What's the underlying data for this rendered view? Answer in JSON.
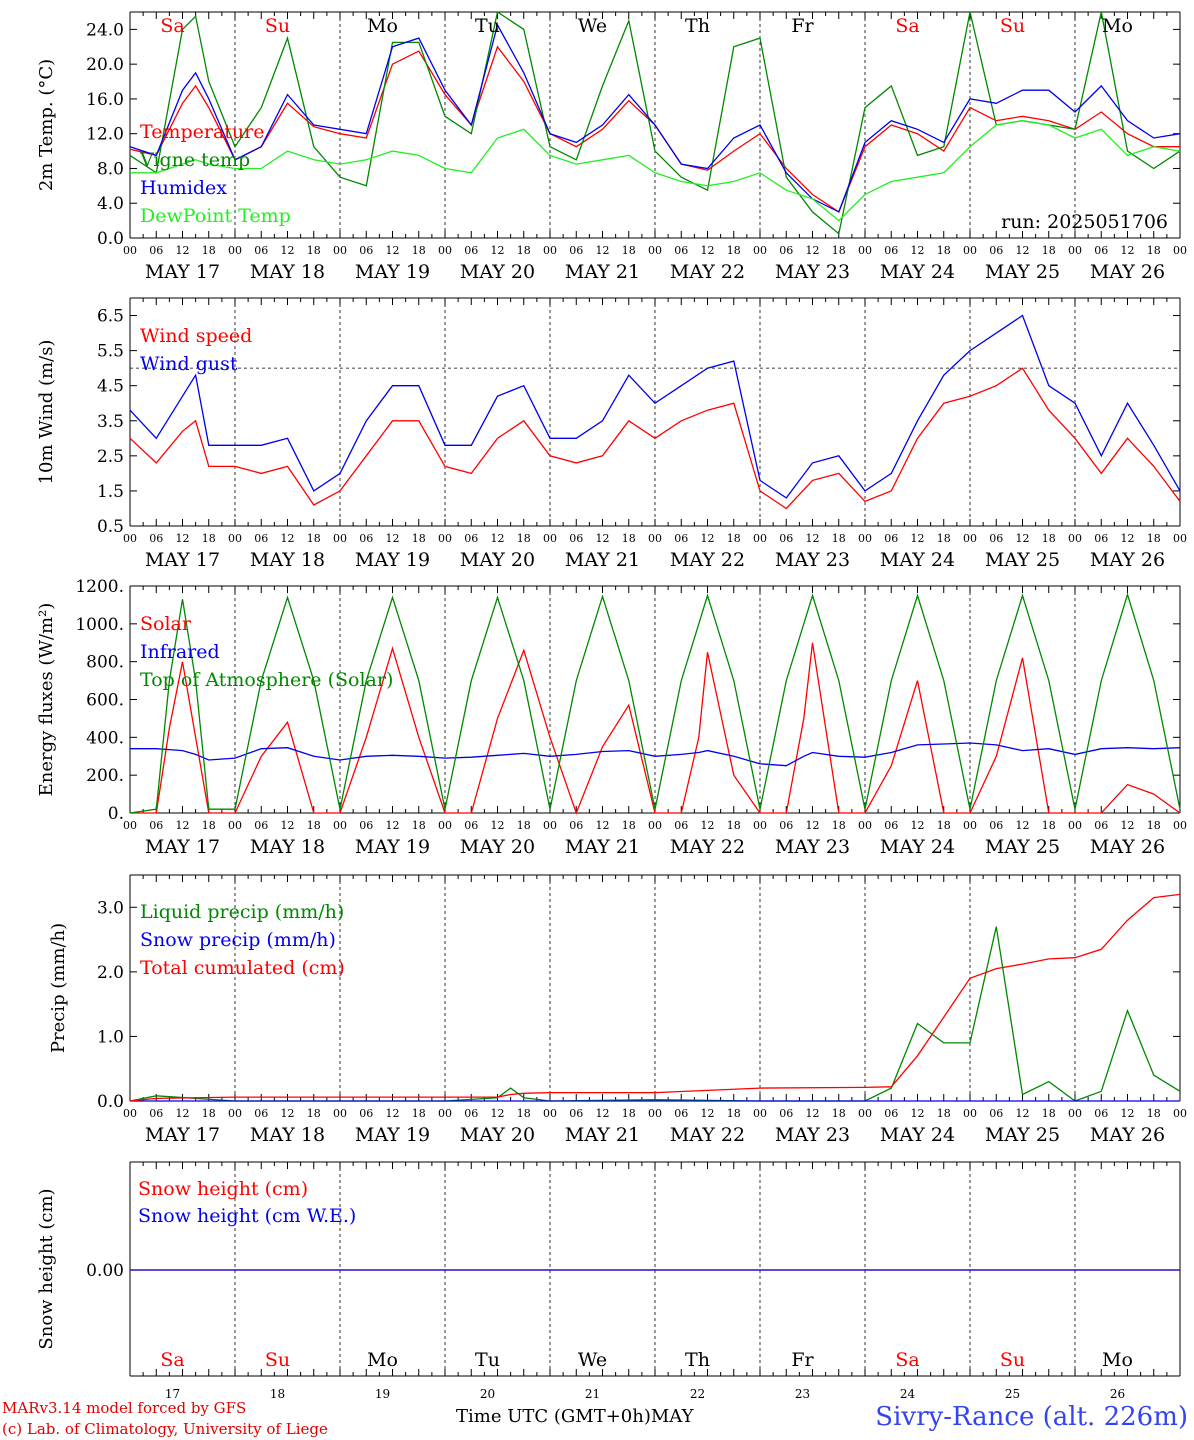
{
  "footer": {
    "credit_line1": "MARv3.14 model forced by GFS",
    "credit_line2": "(c) Lab. of Climatology, University of Liege",
    "time_label": "Time UTC (GMT+0h)",
    "month_label": "MAY",
    "station": "Sivry-Rance (alt. 226m)"
  },
  "days": {
    "names": [
      "Sa",
      "Su",
      "Mo",
      "Tu",
      "We",
      "Th",
      "Fr",
      "Sa",
      "Su",
      "Mo"
    ],
    "weekend": [
      true,
      true,
      false,
      false,
      false,
      false,
      false,
      true,
      true,
      false
    ],
    "dates": [
      "MAY 17",
      "MAY 18",
      "MAY 19",
      "MAY 20",
      "MAY 21",
      "MAY 22",
      "MAY 23",
      "MAY 24",
      "MAY 25",
      "MAY 26"
    ],
    "numbers": [
      "17",
      "18",
      "19",
      "20",
      "21",
      "22",
      "23",
      "24",
      "25",
      "26"
    ],
    "hours": [
      "00",
      "06",
      "12",
      "18"
    ],
    "end_hour": "00"
  },
  "colors": {
    "red": "#ff0000",
    "green": "#008800",
    "blue": "#0000ee",
    "lightgreen": "#22ee22",
    "weekday": "#000000"
  },
  "chart_data": [
    {
      "type": "line",
      "ylabel": "2m Temp. (°C)",
      "ylim": [
        0,
        26
      ],
      "yticks": [
        "0.0",
        "4.0",
        "8.0",
        "12.0",
        "16.0",
        "20.0",
        "24.0"
      ],
      "annotation": "run: 2025051706",
      "x_hours": [
        0,
        6,
        12,
        15,
        18,
        24,
        30,
        36,
        42,
        48,
        54,
        60,
        66,
        72,
        78,
        84,
        90,
        96,
        102,
        108,
        114,
        120,
        126,
        132,
        138,
        144,
        150,
        156,
        162,
        168,
        174,
        180,
        186,
        192,
        198,
        204,
        210,
        216,
        222,
        228,
        234,
        240
      ],
      "series": [
        {
          "name": "Temperature",
          "color": "red",
          "values": [
            10.2,
            9.5,
            15.5,
            17.5,
            15.0,
            9.0,
            10.5,
            15.5,
            12.8,
            12.0,
            11.5,
            20.0,
            21.5,
            16.5,
            13.0,
            22.0,
            18.0,
            12.0,
            10.5,
            12.5,
            15.8,
            13.0,
            8.5,
            7.8,
            10.0,
            12.0,
            8.0,
            5.0,
            3.0,
            10.5,
            13.0,
            12.0,
            10.0,
            15.0,
            13.5,
            14.0,
            13.5,
            12.5,
            14.5,
            12.0,
            10.5,
            10.5
          ]
        },
        {
          "name": "Vigne temp",
          "color": "green",
          "values": [
            9.5,
            7.5,
            24.0,
            25.5,
            18.0,
            10.5,
            15.0,
            23.0,
            10.5,
            7.0,
            6.0,
            22.5,
            22.5,
            14.0,
            12.0,
            26.0,
            24.0,
            10.5,
            9.0,
            17.5,
            25.0,
            10.0,
            7.0,
            5.5,
            22.0,
            23.0,
            7.0,
            3.0,
            0.5,
            15.0,
            17.5,
            9.5,
            10.5,
            26.0,
            13.0,
            13.5,
            13.0,
            12.5,
            26.0,
            10.0,
            8.0,
            10.0
          ]
        },
        {
          "name": "Humidex",
          "color": "blue",
          "values": [
            10.5,
            9.5,
            17.0,
            19.0,
            16.0,
            9.0,
            10.5,
            16.5,
            13.0,
            12.5,
            12.0,
            22.0,
            23.0,
            17.0,
            13.0,
            24.5,
            19.0,
            12.0,
            11.0,
            13.0,
            16.5,
            13.0,
            8.5,
            8.0,
            11.5,
            13.0,
            7.5,
            4.5,
            3.0,
            11.0,
            13.5,
            12.5,
            11.0,
            16.0,
            15.5,
            17.0,
            17.0,
            14.5,
            17.5,
            13.5,
            11.5,
            12.0
          ]
        },
        {
          "name": "DewPoint Temp",
          "color": "lightgreen",
          "values": [
            7.5,
            7.5,
            8.5,
            9.0,
            8.5,
            8.0,
            8.0,
            10.0,
            9.0,
            8.5,
            9.0,
            10.0,
            9.5,
            8.0,
            7.5,
            11.5,
            12.5,
            9.5,
            8.5,
            9.0,
            9.5,
            7.5,
            6.5,
            6.0,
            6.5,
            7.5,
            5.5,
            4.5,
            2.0,
            5.0,
            6.5,
            7.0,
            7.5,
            10.5,
            13.0,
            13.5,
            13.0,
            11.5,
            12.5,
            9.5,
            10.5,
            10.0
          ]
        }
      ]
    },
    {
      "type": "line",
      "ylabel": "10m Wind (m/s)",
      "ylim": [
        0.5,
        7.0
      ],
      "yticks": [
        "0.5",
        "1.5",
        "2.5",
        "3.5",
        "4.5",
        "5.5",
        "6.5"
      ],
      "reference_line": 5.0,
      "x_hours": [
        0,
        6,
        12,
        15,
        18,
        24,
        30,
        36,
        42,
        48,
        54,
        60,
        66,
        72,
        78,
        84,
        90,
        96,
        102,
        108,
        114,
        120,
        126,
        132,
        138,
        144,
        150,
        156,
        162,
        168,
        174,
        180,
        186,
        192,
        198,
        204,
        210,
        216,
        222,
        228,
        234,
        240
      ],
      "series": [
        {
          "name": "Wind speed",
          "color": "red",
          "values": [
            3.0,
            2.3,
            3.2,
            3.5,
            2.2,
            2.2,
            2.0,
            2.2,
            1.1,
            1.5,
            2.5,
            3.5,
            3.5,
            2.2,
            2.0,
            3.0,
            3.5,
            2.5,
            2.3,
            2.5,
            3.5,
            3.0,
            3.5,
            3.8,
            4.0,
            1.5,
            1.0,
            1.8,
            2.0,
            1.2,
            1.5,
            3.0,
            4.0,
            4.2,
            4.5,
            5.0,
            3.8,
            3.0,
            2.0,
            3.0,
            2.2,
            1.2
          ]
        },
        {
          "name": "Wind gust",
          "color": "blue",
          "values": [
            3.8,
            3.0,
            4.2,
            4.8,
            2.8,
            2.8,
            2.8,
            3.0,
            1.5,
            2.0,
            3.5,
            4.5,
            4.5,
            2.8,
            2.8,
            4.2,
            4.5,
            3.0,
            3.0,
            3.5,
            4.8,
            4.0,
            4.5,
            5.0,
            5.2,
            1.8,
            1.3,
            2.3,
            2.5,
            1.5,
            2.0,
            3.5,
            4.8,
            5.5,
            6.0,
            6.5,
            4.5,
            4.0,
            2.5,
            4.0,
            2.8,
            1.5
          ]
        }
      ]
    },
    {
      "type": "line",
      "ylabel": "Energy fluxes (W/m²)",
      "ylim": [
        0,
        1200
      ],
      "yticks": [
        "0.",
        "200.",
        "400.",
        "600.",
        "800.",
        "1000.",
        "1200."
      ],
      "x_hours": [
        0,
        6,
        9,
        12,
        15,
        18,
        24,
        30,
        36,
        42,
        48,
        54,
        60,
        66,
        72,
        78,
        84,
        90,
        96,
        102,
        108,
        114,
        120,
        126,
        130,
        132,
        138,
        144,
        150,
        154,
        156,
        162,
        168,
        174,
        180,
        186,
        192,
        198,
        204,
        210,
        216,
        222,
        228,
        234,
        240
      ],
      "series": [
        {
          "name": "Solar",
          "color": "red",
          "values": [
            0,
            0,
            450,
            800,
            400,
            0,
            0,
            300,
            480,
            0,
            0,
            400,
            870,
            400,
            0,
            0,
            500,
            860,
            400,
            0,
            350,
            570,
            0,
            0,
            400,
            850,
            200,
            0,
            0,
            500,
            900,
            0,
            0,
            250,
            700,
            0,
            0,
            300,
            820,
            0,
            0,
            0,
            150,
            100,
            0
          ]
        },
        {
          "name": "Infrared",
          "color": "blue",
          "values": [
            340,
            340,
            335,
            330,
            310,
            280,
            290,
            340,
            345,
            300,
            280,
            300,
            305,
            300,
            290,
            295,
            305,
            315,
            300,
            310,
            325,
            330,
            300,
            310,
            320,
            330,
            300,
            260,
            250,
            300,
            320,
            300,
            295,
            320,
            360,
            365,
            370,
            360,
            330,
            340,
            310,
            340,
            345,
            340,
            345
          ]
        },
        {
          "name": "Top of Atmosphere (Solar)",
          "color": "green",
          "values": [
            0,
            20,
            700,
            1130,
            700,
            20,
            20,
            700,
            1140,
            700,
            20,
            700,
            1140,
            700,
            20,
            700,
            1140,
            700,
            20,
            700,
            1145,
            700,
            20,
            700,
            1000,
            1150,
            700,
            20,
            700,
            1000,
            1150,
            700,
            20,
            700,
            1150,
            700,
            20,
            700,
            1150,
            700,
            20,
            700,
            1155,
            700,
            20
          ]
        }
      ]
    },
    {
      "type": "line",
      "ylabel": "Precip (mm/h)",
      "ylim": [
        0,
        3.5
      ],
      "yticks": [
        "0.0",
        "1.0",
        "2.0",
        "3.0"
      ],
      "x_hours": [
        0,
        6,
        24,
        72,
        84,
        87,
        90,
        96,
        120,
        144,
        168,
        174,
        180,
        186,
        192,
        198,
        204,
        210,
        216,
        222,
        228,
        234,
        240
      ],
      "series": [
        {
          "name": "Liquid precip (mm/h)",
          "color": "green",
          "values": [
            0,
            0.08,
            0,
            0,
            0.05,
            0.2,
            0.05,
            0,
            0.02,
            0,
            0,
            0.2,
            1.2,
            0.9,
            0.9,
            2.7,
            0.1,
            0.3,
            0.0,
            0.15,
            1.4,
            0.4,
            0.15
          ]
        },
        {
          "name": "Snow precip (mm/h)",
          "color": "blue",
          "values": [
            0,
            0,
            0,
            0,
            0,
            0,
            0,
            0,
            0,
            0,
            0,
            0,
            0,
            0,
            0,
            0,
            0,
            0,
            0,
            0,
            0,
            0,
            0
          ]
        },
        {
          "name": "Total cumulated (cm)",
          "color": "red",
          "values": [
            0,
            0.04,
            0.06,
            0.06,
            0.06,
            0.1,
            0.12,
            0.13,
            0.13,
            0.2,
            0.21,
            0.22,
            0.7,
            1.3,
            1.9,
            2.05,
            2.12,
            2.2,
            2.22,
            2.35,
            2.8,
            3.15,
            3.2
          ]
        }
      ]
    },
    {
      "type": "line",
      "ylabel": "Snow height (cm)",
      "yticks": [
        "0.00"
      ],
      "x_hours": [
        0,
        240
      ],
      "series": [
        {
          "name": "Snow height (cm)",
          "color": "red",
          "values": [
            0,
            0
          ]
        },
        {
          "name": "Snow height (cm W.E.)",
          "color": "blue",
          "values": [
            0,
            0
          ]
        }
      ]
    }
  ]
}
